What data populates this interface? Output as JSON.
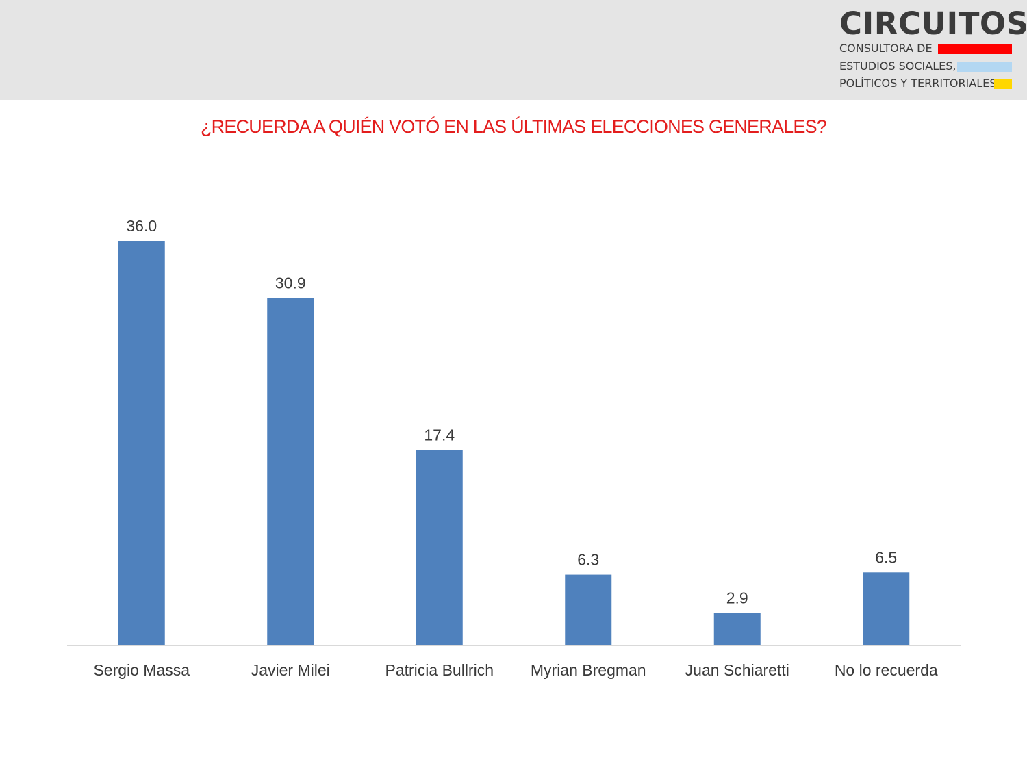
{
  "header": {
    "logo": {
      "name": "CIRCUITOS",
      "lines": [
        "CONSULTORA DE",
        "ESTUDIOS SOCIALES,",
        "POLÍTICOS Y TERRITORIALES"
      ],
      "bar_colors": [
        "#ff0000",
        "#b3d7f2",
        "#ffd700"
      ]
    }
  },
  "chart_data": {
    "type": "bar",
    "title": "¿RECUERDA A QUIÉN VOTÓ EN LAS ÚLTIMAS ELECCIONES GENERALES?",
    "categories": [
      "Sergio Massa",
      "Javier Milei",
      "Patricia Bullrich",
      "Myrian Bregman",
      "Juan Schiaretti",
      "No lo recuerda"
    ],
    "values": [
      36.0,
      30.9,
      17.4,
      6.3,
      2.9,
      6.5
    ],
    "value_labels": [
      "36.0",
      "30.9",
      "17.4",
      "6.3",
      "2.9",
      "6.5"
    ],
    "bar_color": "#4f81bd",
    "title_color": "#e31d1d",
    "axis_color": "#d9d9d9",
    "ylim": [
      0,
      36
    ],
    "grid": false,
    "legend": "none"
  }
}
